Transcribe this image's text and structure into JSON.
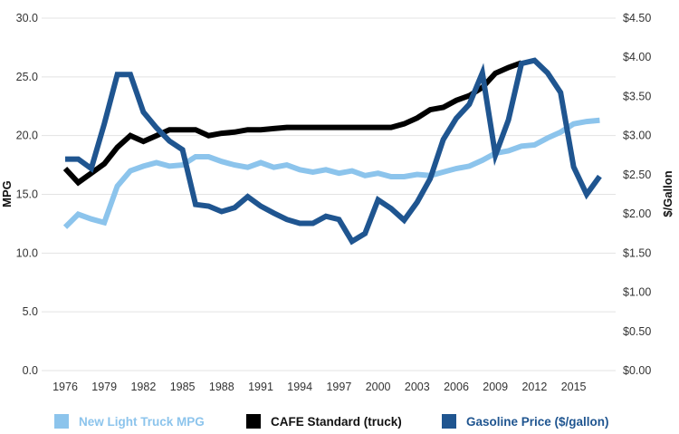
{
  "chart_data": {
    "type": "line",
    "xlabel": "",
    "ylabel": "MPG",
    "y2label": "$/Gallon",
    "ylim": [
      0,
      30
    ],
    "y2lim": [
      0,
      4.5
    ],
    "grid": true,
    "legend_position": "bottom",
    "x": [
      1976,
      1977,
      1978,
      1979,
      1980,
      1981,
      1982,
      1983,
      1984,
      1985,
      1986,
      1987,
      1988,
      1989,
      1990,
      1991,
      1992,
      1993,
      1994,
      1995,
      1996,
      1997,
      1998,
      1999,
      2000,
      2001,
      2002,
      2003,
      2004,
      2005,
      2006,
      2007,
      2008,
      2009,
      2010,
      2011,
      2012,
      2013,
      2014,
      2015,
      2016,
      2017
    ],
    "x_tick_labels": [
      "1976",
      "1979",
      "1982",
      "1985",
      "1988",
      "1991",
      "1994",
      "1997",
      "2000",
      "2003",
      "2006",
      "2009",
      "2012",
      "2015"
    ],
    "y_tick_labels": [
      "0.0",
      "5.0",
      "10.0",
      "15.0",
      "20.0",
      "25.0",
      "30.0"
    ],
    "y2_tick_labels": [
      "$0.00",
      "$0.50",
      "$1.00",
      "$1.50",
      "$2.00",
      "$2.50",
      "$3.00",
      "$3.50",
      "$4.00",
      "$4.50"
    ],
    "series": [
      {
        "name": "New Light Truck MPG",
        "axis": "left",
        "color": "#8cc4ec",
        "values": [
          12.2,
          13.3,
          12.9,
          12.6,
          15.7,
          17.0,
          17.4,
          17.7,
          17.4,
          17.5,
          18.2,
          18.2,
          17.8,
          17.5,
          17.3,
          17.7,
          17.3,
          17.5,
          17.1,
          16.9,
          17.1,
          16.8,
          17.0,
          16.6,
          16.8,
          16.5,
          16.5,
          16.7,
          16.6,
          16.9,
          17.2,
          17.4,
          17.9,
          18.5,
          18.7,
          19.1,
          19.2,
          19.8,
          20.3,
          21.0,
          21.2,
          21.3
        ]
      },
      {
        "name": "CAFE Standard (truck)",
        "axis": "left",
        "color": "#000000",
        "values": [
          17.2,
          16.0,
          16.8,
          17.6,
          19.0,
          20.0,
          19.5,
          20.0,
          20.5,
          20.5,
          20.5,
          20.0,
          20.2,
          20.3,
          20.5,
          20.5,
          20.6,
          20.7,
          20.7,
          20.7,
          20.7,
          20.7,
          20.7,
          20.7,
          20.7,
          20.7,
          21.0,
          21.5,
          22.2,
          22.4,
          23.0,
          23.4,
          24.1,
          25.3,
          25.8,
          26.2,
          null,
          null,
          null,
          null,
          null,
          null
        ]
      },
      {
        "name": "Gasoline Price ($/gallon)",
        "axis": "right",
        "color": "#1f5590",
        "values": [
          2.7,
          2.7,
          2.58,
          3.15,
          3.78,
          3.78,
          3.3,
          3.1,
          2.93,
          2.82,
          2.12,
          2.1,
          2.03,
          2.08,
          2.22,
          2.1,
          2.01,
          1.93,
          1.88,
          1.88,
          1.97,
          1.93,
          1.65,
          1.75,
          2.18,
          2.07,
          1.92,
          2.15,
          2.45,
          2.95,
          3.22,
          3.4,
          3.8,
          2.75,
          3.2,
          3.92,
          3.96,
          3.8,
          3.55,
          2.6,
          2.25,
          2.48
        ]
      }
    ]
  }
}
